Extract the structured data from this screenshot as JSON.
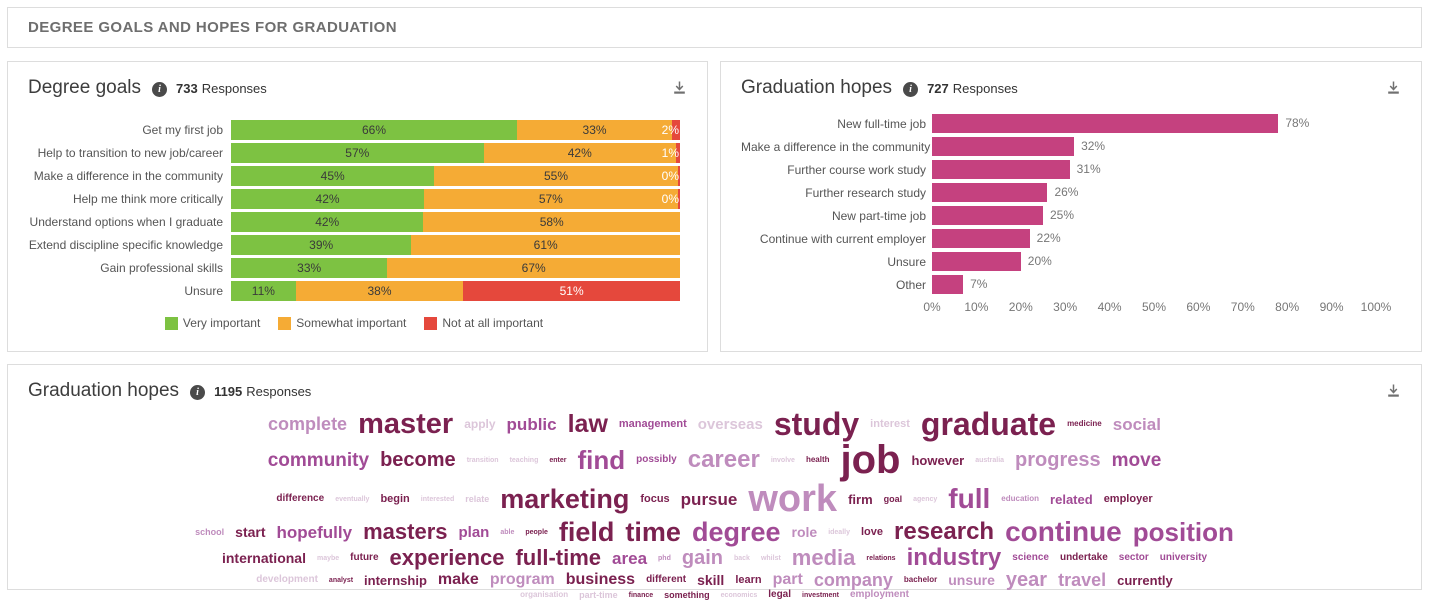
{
  "page": {
    "header_title": "DEGREE GOALS AND HOPES FOR GRADUATION"
  },
  "colors": {
    "green": "#7dc242",
    "orange": "#f5ab35",
    "red": "#e5483c",
    "pink": "#c5417f",
    "cloud": {
      "c1": "#7b2150",
      "c2": "#a14b96",
      "c3": "#bf8cbd",
      "c4": "#dcc6da"
    }
  },
  "panels": {
    "degree_goals": {
      "title": "Degree goals",
      "responses_count": "733",
      "responses_label": "Responses"
    },
    "graduation_hopes": {
      "title": "Graduation hopes",
      "responses_count": "727",
      "responses_label": "Responses"
    },
    "word_cloud": {
      "title": "Graduation hopes",
      "responses_count": "1195",
      "responses_label": "Responses"
    }
  },
  "chart_data": [
    {
      "type": "bar",
      "subtype": "horizontal_stacked",
      "title": "Degree goals",
      "value_suffix": "%",
      "xlim": [
        0,
        100
      ],
      "grid": false,
      "legend_position": "bottom",
      "categories": [
        "Get my first job",
        "Help to transition to new job/career",
        "Make a difference in the community",
        "Help me think more critically",
        "Understand options when I graduate",
        "Extend discipline specific knowledge",
        "Gain professional skills",
        "Unsure"
      ],
      "series": [
        {
          "name": "Very important",
          "color_key": "green",
          "values": [
            66,
            57,
            45,
            42,
            42,
            39,
            33,
            11
          ]
        },
        {
          "name": "Somewhat important",
          "color_key": "orange",
          "values": [
            33,
            42,
            55,
            57,
            58,
            61,
            67,
            38
          ]
        },
        {
          "name": "Not at all important",
          "color_key": "red",
          "values": [
            2,
            1,
            0,
            0,
            null,
            null,
            null,
            51
          ]
        }
      ]
    },
    {
      "type": "bar",
      "subtype": "horizontal",
      "title": "Graduation hopes",
      "value_suffix": "%",
      "xlim": [
        0,
        100
      ],
      "grid": false,
      "color_key": "pink",
      "categories": [
        "New full-time job",
        "Make a difference in the community",
        "Further course work study",
        "Further research study",
        "New part-time job",
        "Continue with current employer",
        "Unsure",
        "Other"
      ],
      "values": [
        78,
        32,
        31,
        26,
        25,
        22,
        20,
        7
      ],
      "xticks": [
        "0%",
        "10%",
        "20%",
        "30%",
        "40%",
        "50%",
        "60%",
        "70%",
        "80%",
        "90%",
        "100%"
      ]
    },
    {
      "type": "wordcloud",
      "title": "Graduation hopes",
      "rows": [
        [
          {
            "t": "complete",
            "s": 18,
            "c": "c3"
          },
          {
            "t": "master",
            "s": 29,
            "c": "c1"
          },
          {
            "t": "apply",
            "s": 12,
            "c": "c4"
          },
          {
            "t": "public",
            "s": 17,
            "c": "c2"
          },
          {
            "t": "law",
            "s": 25,
            "c": "c1"
          },
          {
            "t": "management",
            "s": 11,
            "c": "c2"
          },
          {
            "t": "overseas",
            "s": 15,
            "c": "c4"
          },
          {
            "t": "study",
            "s": 32,
            "c": "c1"
          },
          {
            "t": "interest",
            "s": 11,
            "c": "c4"
          },
          {
            "t": "graduate",
            "s": 32,
            "c": "c1"
          },
          {
            "t": "medicine",
            "s": 8,
            "c": "c1"
          },
          {
            "t": "social",
            "s": 17,
            "c": "c3"
          }
        ],
        [
          {
            "t": "community",
            "s": 19,
            "c": "c2"
          },
          {
            "t": "become",
            "s": 20,
            "c": "c1"
          },
          {
            "t": "transition",
            "s": 7,
            "c": "c4"
          },
          {
            "t": "teaching",
            "s": 7,
            "c": "c4"
          },
          {
            "t": "enter",
            "s": 7,
            "c": "c1"
          },
          {
            "t": "find",
            "s": 26,
            "c": "c2"
          },
          {
            "t": "possibly",
            "s": 10,
            "c": "c2"
          },
          {
            "t": "career",
            "s": 24,
            "c": "c3"
          },
          {
            "t": "involve",
            "s": 7,
            "c": "c4"
          },
          {
            "t": "health",
            "s": 8,
            "c": "c1"
          },
          {
            "t": "job",
            "s": 40,
            "c": "c1"
          },
          {
            "t": "however",
            "s": 13,
            "c": "c1"
          },
          {
            "t": "australia",
            "s": 7,
            "c": "c4"
          },
          {
            "t": "progress",
            "s": 20,
            "c": "c3"
          },
          {
            "t": "move",
            "s": 19,
            "c": "c2"
          }
        ],
        [
          {
            "t": "difference",
            "s": 10,
            "c": "c1"
          },
          {
            "t": "eventually",
            "s": 7,
            "c": "c4"
          },
          {
            "t": "begin",
            "s": 11,
            "c": "c1"
          },
          {
            "t": "interested",
            "s": 7,
            "c": "c4"
          },
          {
            "t": "relate",
            "s": 9,
            "c": "c4"
          },
          {
            "t": "marketing",
            "s": 27,
            "c": "c1"
          },
          {
            "t": "focus",
            "s": 11,
            "c": "c1"
          },
          {
            "t": "pursue",
            "s": 17,
            "c": "c1"
          },
          {
            "t": "work",
            "s": 38,
            "c": "c3"
          },
          {
            "t": "firm",
            "s": 13,
            "c": "c1"
          },
          {
            "t": "goal",
            "s": 9,
            "c": "c1"
          },
          {
            "t": "agency",
            "s": 7,
            "c": "c4"
          },
          {
            "t": "full",
            "s": 28,
            "c": "c2"
          },
          {
            "t": "education",
            "s": 8,
            "c": "c3"
          },
          {
            "t": "related",
            "s": 13,
            "c": "c2"
          },
          {
            "t": "employer",
            "s": 11,
            "c": "c1"
          }
        ],
        [
          {
            "t": "school",
            "s": 9,
            "c": "c3"
          },
          {
            "t": "start",
            "s": 14,
            "c": "c1"
          },
          {
            "t": "hopefully",
            "s": 17,
            "c": "c2"
          },
          {
            "t": "masters",
            "s": 22,
            "c": "c1"
          },
          {
            "t": "plan",
            "s": 15,
            "c": "c2"
          },
          {
            "t": "able",
            "s": 7,
            "c": "c3"
          },
          {
            "t": "people",
            "s": 7,
            "c": "c1"
          },
          {
            "t": "field",
            "s": 27,
            "c": "c1"
          },
          {
            "t": "time",
            "s": 27,
            "c": "c1"
          },
          {
            "t": "degree",
            "s": 27,
            "c": "c2"
          },
          {
            "t": "role",
            "s": 14,
            "c": "c3"
          },
          {
            "t": "ideally",
            "s": 7,
            "c": "c4"
          },
          {
            "t": "love",
            "s": 11,
            "c": "c1"
          },
          {
            "t": "research",
            "s": 24,
            "c": "c1"
          },
          {
            "t": "continue",
            "s": 28,
            "c": "c2"
          },
          {
            "t": "position",
            "s": 26,
            "c": "c2"
          }
        ],
        [
          {
            "t": "international",
            "s": 14,
            "c": "c1"
          },
          {
            "t": "maybe",
            "s": 7,
            "c": "c4"
          },
          {
            "t": "future",
            "s": 10,
            "c": "c1"
          },
          {
            "t": "experience",
            "s": 22,
            "c": "c1"
          },
          {
            "t": "full-time",
            "s": 22,
            "c": "c1"
          },
          {
            "t": "area",
            "s": 17,
            "c": "c2"
          },
          {
            "t": "phd",
            "s": 7,
            "c": "c3"
          },
          {
            "t": "gain",
            "s": 20,
            "c": "c3"
          },
          {
            "t": "back",
            "s": 7,
            "c": "c4"
          },
          {
            "t": "whilst",
            "s": 7,
            "c": "c4"
          },
          {
            "t": "media",
            "s": 22,
            "c": "c3"
          },
          {
            "t": "relations",
            "s": 7,
            "c": "c1"
          },
          {
            "t": "industry",
            "s": 24,
            "c": "c2"
          },
          {
            "t": "science",
            "s": 10,
            "c": "c2"
          },
          {
            "t": "undertake",
            "s": 10,
            "c": "c1"
          },
          {
            "t": "sector",
            "s": 10,
            "c": "c2"
          },
          {
            "t": "university",
            "s": 10,
            "c": "c2"
          }
        ],
        [
          {
            "t": "development",
            "s": 10,
            "c": "c4"
          },
          {
            "t": "analyst",
            "s": 7,
            "c": "c1"
          },
          {
            "t": "internship",
            "s": 13,
            "c": "c1"
          },
          {
            "t": "make",
            "s": 16,
            "c": "c1"
          },
          {
            "t": "program",
            "s": 16,
            "c": "c3"
          },
          {
            "t": "business",
            "s": 16,
            "c": "c1"
          },
          {
            "t": "different",
            "s": 10,
            "c": "c1"
          },
          {
            "t": "skill",
            "s": 14,
            "c": "c1"
          },
          {
            "t": "learn",
            "s": 11,
            "c": "c1"
          },
          {
            "t": "part",
            "s": 16,
            "c": "c3"
          },
          {
            "t": "company",
            "s": 18,
            "c": "c3"
          },
          {
            "t": "bachelor",
            "s": 8,
            "c": "c1"
          },
          {
            "t": "unsure",
            "s": 14,
            "c": "c3"
          },
          {
            "t": "year",
            "s": 20,
            "c": "c3"
          },
          {
            "t": "travel",
            "s": 18,
            "c": "c3"
          },
          {
            "t": "currently",
            "s": 13,
            "c": "c1"
          }
        ],
        [
          {
            "t": "organisation",
            "s": 8,
            "c": "c4"
          },
          {
            "t": "part-time",
            "s": 9,
            "c": "c4"
          },
          {
            "t": "finance",
            "s": 7,
            "c": "c1"
          },
          {
            "t": "something",
            "s": 9,
            "c": "c1"
          },
          {
            "t": "economics",
            "s": 7,
            "c": "c4"
          },
          {
            "t": "legal",
            "s": 10,
            "c": "c1"
          },
          {
            "t": "investment",
            "s": 7,
            "c": "c1"
          },
          {
            "t": "employment",
            "s": 10,
            "c": "c3"
          }
        ]
      ]
    }
  ]
}
